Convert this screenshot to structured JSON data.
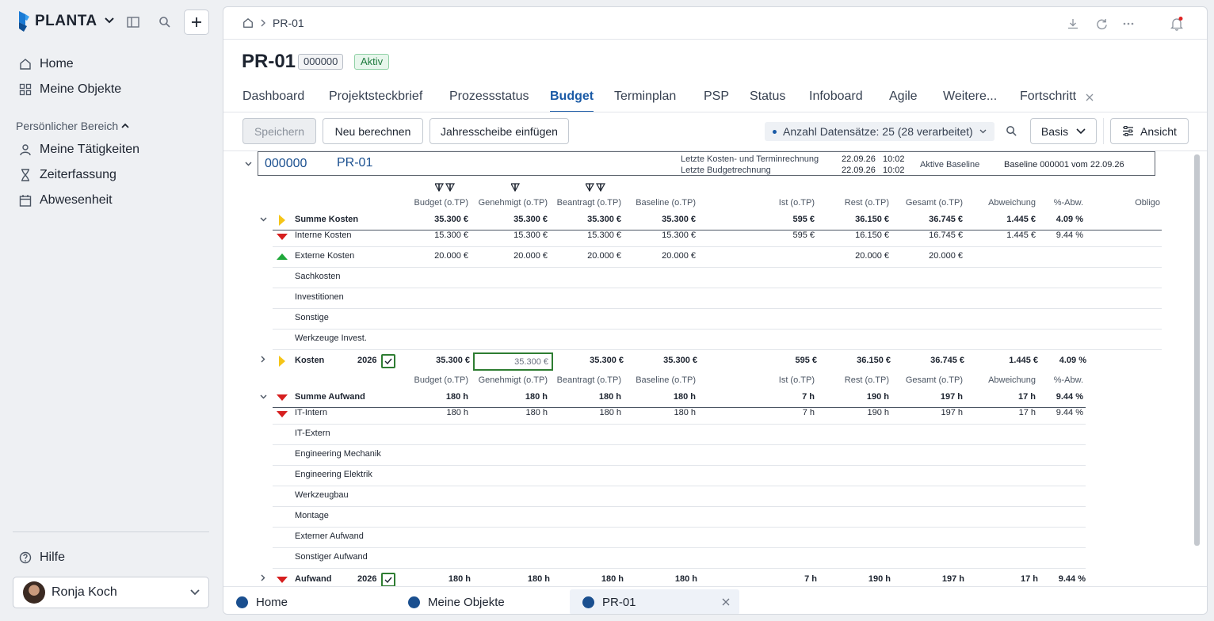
{
  "sidebar": {
    "brand": "PLANTA",
    "nav": [
      {
        "label": "Home"
      },
      {
        "label": "Meine Objekte"
      }
    ],
    "section_label": "Persönlicher Bereich",
    "personal": [
      {
        "label": "Meine Tätigkeiten"
      },
      {
        "label": "Zeiterfassung"
      },
      {
        "label": "Abwesenheit"
      }
    ],
    "help": "Hilfe",
    "user": "Ronja Koch"
  },
  "breadcrumb": {
    "current": "PR-01"
  },
  "header": {
    "title": "PR-01",
    "number": "000000",
    "status": "Aktiv"
  },
  "tabs": [
    "Dashboard",
    "Projektsteckbrief",
    "Prozessstatus",
    "Budget",
    "Terminplan",
    "PSP",
    "Status",
    "Infoboard",
    "Agile",
    "Weitere...",
    "Fortschritt"
  ],
  "toolbar": {
    "save": "Speichern",
    "recalc": "Neu berechnen",
    "insert_year": "Jahresscheibe einfügen",
    "records": "Anzahl Datensätze: 25 (28 verarbeitet)",
    "view_select": "Basis",
    "view": "Ansicht"
  },
  "project_box": {
    "id": "000000",
    "name": "PR-01",
    "last_calc_label": "Letzte Kosten- und Terminrechnung",
    "last_calc_date": "22.09.26",
    "last_calc_time": "10:02",
    "last_budget_label": "Letzte Budgetrechnung",
    "last_budget_date": "22.09.26",
    "last_budget_time": "10:02",
    "baseline_label": "Aktive Baseline",
    "baseline_value": "Baseline 000001 vom 22.09.26"
  },
  "columns": [
    "Budget (o.TP)",
    "Genehmigt (o.TP)",
    "Beantragt (o.TP)",
    "Baseline (o.TP)",
    "Ist (o.TP)",
    "Rest (o.TP)",
    "Gesamt (o.TP)",
    "Abweichung",
    "%-Abw.",
    "Obligo"
  ],
  "kosten": {
    "sum": {
      "label": "Summe Kosten",
      "values": [
        "35.300 €",
        "35.300 €",
        "35.300 €",
        "35.300 €",
        "595 €",
        "36.150 €",
        "36.745 €",
        "1.445 €",
        "4.09 %"
      ]
    },
    "rows": [
      {
        "label": "Interne Kosten",
        "values": [
          "15.300 €",
          "15.300 €",
          "15.300 €",
          "15.300 €",
          "595 €",
          "16.150 €",
          "16.745 €",
          "1.445 €",
          "9.44 %"
        ]
      },
      {
        "label": "Externe Kosten",
        "values": [
          "20.000 €",
          "20.000 €",
          "20.000 €",
          "20.000 €",
          "",
          "20.000 €",
          "20.000 €",
          "",
          ""
        ]
      },
      {
        "label": "Sachkosten"
      },
      {
        "label": "Investitionen"
      },
      {
        "label": "Sonstige"
      },
      {
        "label": "Werkzeuge Invest."
      }
    ],
    "year_row": {
      "label": "Kosten",
      "year": "2026",
      "values": [
        "35.300 €",
        "35.300 €",
        "35.300 €",
        "35.300 €",
        "595 €",
        "36.150 €",
        "36.745 €",
        "1.445 €",
        "4.09 %"
      ]
    }
  },
  "aufwand": {
    "sum": {
      "label": "Summe Aufwand",
      "values": [
        "180 h",
        "180 h",
        "180 h",
        "180 h",
        "7 h",
        "190 h",
        "197 h",
        "17 h",
        "9.44 %"
      ]
    },
    "rows": [
      {
        "label": "IT-Intern",
        "values": [
          "180 h",
          "180 h",
          "180 h",
          "180 h",
          "7 h",
          "190 h",
          "197 h",
          "17 h",
          "9.44 %"
        ]
      },
      {
        "label": "IT-Extern"
      },
      {
        "label": "Engineering Mechanik"
      },
      {
        "label": "Engineering Elektrik"
      },
      {
        "label": "Werkzeugbau"
      },
      {
        "label": "Montage"
      },
      {
        "label": "Externer Aufwand"
      },
      {
        "label": "Sonstiger Aufwand"
      }
    ],
    "year_row": {
      "label": "Aufwand",
      "year": "2026",
      "values": [
        "180 h",
        "180 h",
        "180 h",
        "180 h",
        "7 h",
        "190 h",
        "197 h",
        "17 h",
        "9.44 %"
      ]
    }
  },
  "bottom_tabs": [
    "Home",
    "Meine Objekte",
    "PR-01"
  ],
  "colors": {
    "accent": "#1a5aa6",
    "positive": "#1fa83a",
    "negative": "#d61f1f",
    "warning": "#f5c518"
  }
}
